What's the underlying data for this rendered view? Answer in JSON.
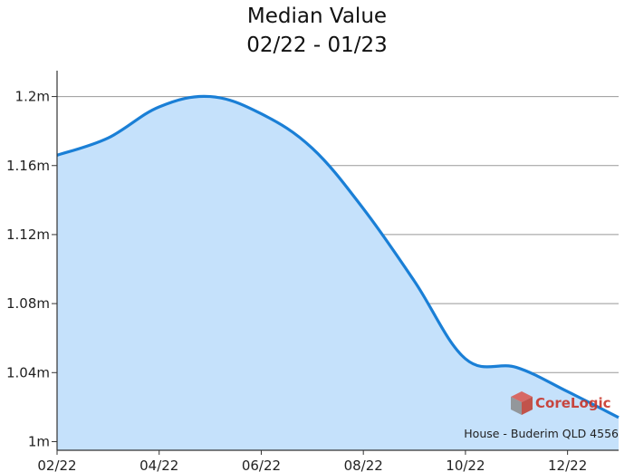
{
  "chart_data": {
    "type": "area",
    "title": "Median Value",
    "subtitle": "02/22 - 01/23",
    "xlabel": "",
    "ylabel": "",
    "x": [
      "02/22",
      "03/22",
      "04/22",
      "05/22",
      "06/22",
      "07/22",
      "08/22",
      "09/22",
      "10/22",
      "11/22",
      "12/22",
      "01/23"
    ],
    "x_tick_labels": [
      "02/22",
      "04/22",
      "06/22",
      "08/22",
      "10/22",
      "12/22"
    ],
    "ylim": [
      0.995,
      1.215
    ],
    "y_ticks": [
      1.0,
      1.04,
      1.08,
      1.12,
      1.16,
      1.2
    ],
    "y_tick_labels": [
      "1m",
      "1.04m",
      "1.08m",
      "1.12m",
      "1.16m",
      "1.2m"
    ],
    "series": [
      {
        "values": [
          1.166,
          1.176,
          1.194,
          1.2,
          1.19,
          1.17,
          1.135,
          1.093,
          1.048,
          1.043,
          1.029,
          1.014
        ]
      }
    ],
    "grid": "horizontal",
    "colors": {
      "line": "#1a7fd6",
      "fill": "#c5e1fb",
      "grid": "#999999"
    },
    "footnote": "House - Buderim QLD 4556",
    "watermark": "CoreLogic"
  }
}
